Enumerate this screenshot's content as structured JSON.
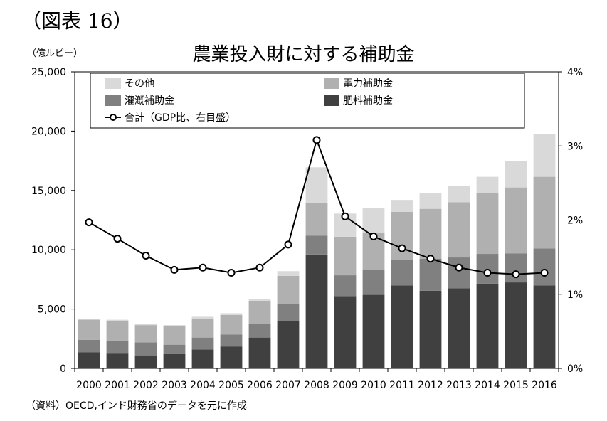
{
  "figure_label": "（図表 16）",
  "unit_label": "（億ルピー）",
  "source_note": "（資料）OECD,インド財務省のデータを元に作成",
  "chart_data": {
    "type": "bar",
    "stacked": true,
    "title": "農業投入財に対する補助金",
    "categories": [
      "2000",
      "2001",
      "2002",
      "2003",
      "2004",
      "2005",
      "2006",
      "2007",
      "2008",
      "2009",
      "2010",
      "2011",
      "2012",
      "2013",
      "2014",
      "2015",
      "2016"
    ],
    "series": [
      {
        "name": "肥料補助金",
        "axis": "left",
        "color": "#404040",
        "values": [
          1350,
          1250,
          1100,
          1200,
          1600,
          1850,
          2600,
          4000,
          9600,
          6100,
          6200,
          7000,
          6550,
          6750,
          7150,
          7250,
          7000
        ]
      },
      {
        "name": "灌漑補助金",
        "axis": "left",
        "color": "#808080",
        "values": [
          1050,
          1050,
          1100,
          800,
          1000,
          1000,
          1150,
          1400,
          1600,
          1750,
          2100,
          2150,
          2700,
          2600,
          2500,
          2450,
          3100
        ]
      },
      {
        "name": "電力補助金",
        "axis": "left",
        "color": "#b0b0b0",
        "values": [
          1700,
          1700,
          1450,
          1550,
          1600,
          1650,
          1950,
          2400,
          2750,
          3250,
          3100,
          4050,
          4200,
          4650,
          5100,
          5550,
          6050
        ]
      },
      {
        "name": "その他",
        "axis": "left",
        "color": "#d9d9d9",
        "values": [
          100,
          100,
          100,
          100,
          150,
          150,
          150,
          400,
          3000,
          1950,
          2150,
          1000,
          1350,
          1400,
          1400,
          2200,
          3600
        ]
      }
    ],
    "line_series": {
      "name": "合計（GDP比、右目盛）",
      "axis": "right",
      "values": [
        0.0197,
        0.0175,
        0.0152,
        0.0133,
        0.0136,
        0.0129,
        0.0136,
        0.0167,
        0.0308,
        0.0205,
        0.0178,
        0.0162,
        0.0148,
        0.0136,
        0.0129,
        0.0127,
        0.0129
      ]
    },
    "left_axis": {
      "min": 0,
      "max": 25000,
      "ticks": [
        0,
        5000,
        10000,
        15000,
        20000,
        25000
      ],
      "tick_labels": [
        "0",
        "5,000",
        "10,000",
        "15,000",
        "20,000",
        "25,000"
      ]
    },
    "right_axis": {
      "min": 0,
      "max": 0.04,
      "ticks": [
        0,
        0.01,
        0.02,
        0.03,
        0.04
      ],
      "tick_labels": [
        "0%",
        "1%",
        "2%",
        "3%",
        "4%"
      ]
    },
    "legend": {
      "placement": "top-left",
      "rows": [
        [
          "その他",
          "電力補助金"
        ],
        [
          "灌漑補助金",
          "肥料補助金"
        ],
        [
          "合計（GDP比、右目盛）"
        ]
      ]
    },
    "grid": false
  }
}
